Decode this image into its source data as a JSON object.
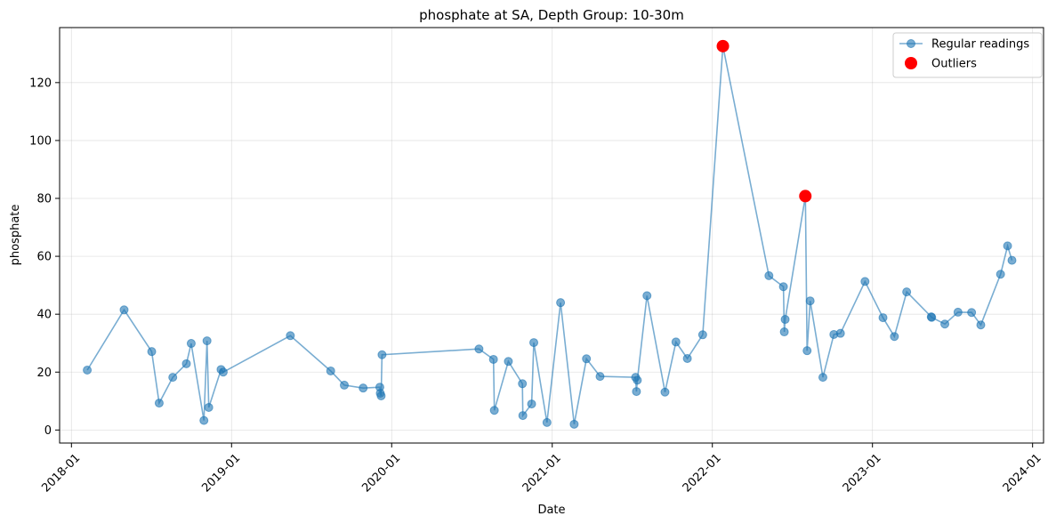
{
  "chart_data": {
    "type": "line",
    "title": "phosphate at SA, Depth Group: 10-30m",
    "xlabel": "Date",
    "ylabel": "phosphate",
    "x_ticks": [
      "2018-01",
      "2019-01",
      "2020-01",
      "2021-01",
      "2022-01",
      "2023-01",
      "2024-01"
    ],
    "y_ticks": [
      0,
      20,
      40,
      60,
      80,
      100,
      120
    ],
    "xlim": [
      "2017-12-05",
      "2024-01-26"
    ],
    "ylim": [
      -4.5,
      139
    ],
    "grid": true,
    "legend_position": "top-right",
    "series": [
      {
        "name": "Regular readings",
        "color": "#1f77b4",
        "marker": "circle",
        "points": [
          [
            "2018-02-06",
            20.7
          ],
          [
            "2018-05-01",
            41.5
          ],
          [
            "2018-07-03",
            27.1
          ],
          [
            "2018-07-20",
            9.3
          ],
          [
            "2018-08-20",
            18.2
          ],
          [
            "2018-09-20",
            22.9
          ],
          [
            "2018-10-01",
            29.9
          ],
          [
            "2018-10-30",
            3.3
          ],
          [
            "2018-11-06",
            30.8
          ],
          [
            "2018-11-10",
            7.8
          ],
          [
            "2018-12-08",
            20.9
          ],
          [
            "2018-12-13",
            20.0
          ],
          [
            "2019-05-15",
            32.6
          ],
          [
            "2019-08-15",
            20.4
          ],
          [
            "2019-09-15",
            15.5
          ],
          [
            "2019-10-28",
            14.5
          ],
          [
            "2019-12-05",
            14.8
          ],
          [
            "2019-12-06",
            12.7
          ],
          [
            "2019-12-08",
            11.8
          ],
          [
            "2019-12-10",
            26.0
          ],
          [
            "2020-07-18",
            28.0
          ],
          [
            "2020-08-20",
            24.4
          ],
          [
            "2020-08-22",
            6.8
          ],
          [
            "2020-09-23",
            23.7
          ],
          [
            "2020-10-25",
            16.0
          ],
          [
            "2020-10-26",
            5.0
          ],
          [
            "2020-11-15",
            9.0
          ],
          [
            "2020-11-20",
            30.2
          ],
          [
            "2020-12-20",
            2.6
          ],
          [
            "2021-01-20",
            44.0
          ],
          [
            "2021-02-20",
            2.0
          ],
          [
            "2021-03-20",
            24.6
          ],
          [
            "2021-04-20",
            18.5
          ],
          [
            "2021-07-10",
            18.2
          ],
          [
            "2021-07-12",
            13.3
          ],
          [
            "2021-07-14",
            17.2
          ],
          [
            "2021-08-05",
            46.4
          ],
          [
            "2021-09-15",
            13.1
          ],
          [
            "2021-10-10",
            30.4
          ],
          [
            "2021-11-05",
            24.7
          ],
          [
            "2021-12-10",
            32.9
          ],
          [
            "2022-01-25",
            132.6
          ],
          [
            "2022-05-10",
            53.3
          ],
          [
            "2022-06-12",
            49.5
          ],
          [
            "2022-06-14",
            33.9
          ],
          [
            "2022-06-16",
            38.2
          ],
          [
            "2022-08-01",
            80.8
          ],
          [
            "2022-08-05",
            27.4
          ],
          [
            "2022-08-12",
            44.6
          ],
          [
            "2022-09-10",
            18.2
          ],
          [
            "2022-10-05",
            33.0
          ],
          [
            "2022-10-20",
            33.4
          ],
          [
            "2022-12-15",
            51.3
          ],
          [
            "2023-01-25",
            38.8
          ],
          [
            "2023-02-20",
            32.3
          ],
          [
            "2023-03-20",
            47.7
          ],
          [
            "2023-05-15",
            39.1
          ],
          [
            "2023-05-16",
            38.9
          ],
          [
            "2023-06-15",
            36.6
          ],
          [
            "2023-07-15",
            40.7
          ],
          [
            "2023-08-15",
            40.6
          ],
          [
            "2023-09-05",
            36.3
          ],
          [
            "2023-10-20",
            53.8
          ],
          [
            "2023-11-05",
            63.6
          ],
          [
            "2023-11-15",
            58.6
          ]
        ]
      },
      {
        "name": "Outliers",
        "color": "#ff0000",
        "marker": "circle",
        "points": [
          [
            "2022-01-25",
            132.6
          ],
          [
            "2022-08-01",
            80.8
          ]
        ]
      }
    ]
  }
}
